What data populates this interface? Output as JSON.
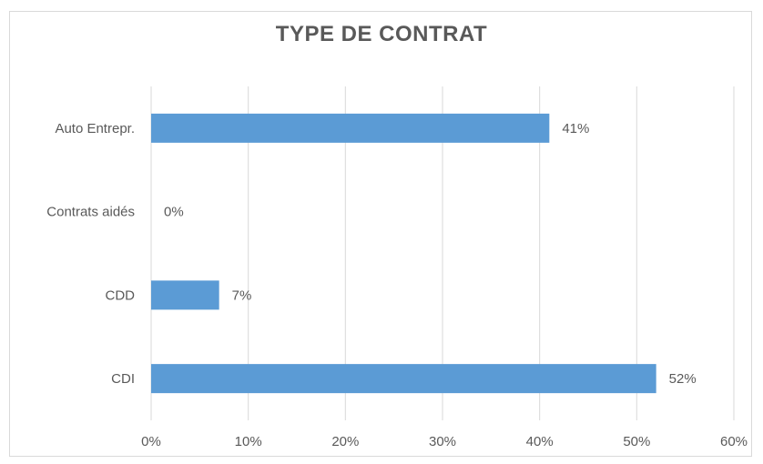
{
  "chart_data": {
    "type": "bar",
    "orientation": "horizontal",
    "title": "TYPE DE CONTRAT",
    "categories": [
      "Auto Entrepr.",
      "Contrats aidés",
      "CDD",
      "CDI"
    ],
    "values": [
      0.41,
      0.0,
      0.07,
      0.52
    ],
    "data_labels": [
      "41%",
      "0%",
      "7%",
      "52%"
    ],
    "xlim": [
      0,
      0.6
    ],
    "x_ticks": [
      "0%",
      "10%",
      "20%",
      "30%",
      "40%",
      "50%",
      "60%"
    ],
    "xlabel": "",
    "ylabel": "",
    "grid": true,
    "legend": "none",
    "bar_color": "#5b9bd5",
    "grid_color": "#d9d9d9"
  }
}
